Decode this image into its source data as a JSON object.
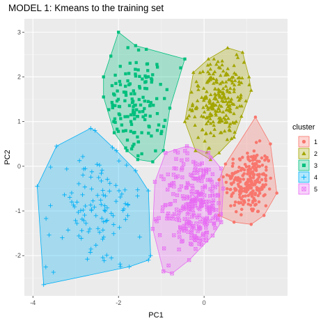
{
  "chart_data": {
    "type": "scatter",
    "title": "MODEL 1: Kmeans to the training set",
    "xlabel": "PC1",
    "ylabel": "PC2",
    "xlim": [
      -4.2,
      1.95
    ],
    "ylim": [
      -2.9,
      3.3
    ],
    "x_ticks": [
      -4,
      -2,
      0
    ],
    "y_ticks": [
      -2,
      -1,
      0,
      1,
      2,
      3
    ],
    "grid": true,
    "legend": {
      "title": "cluster",
      "position": "right"
    },
    "series": [
      {
        "name": "1",
        "color": "#F8766D",
        "shape": "circle",
        "hull": [
          [
            0.5,
            0.05
          ],
          [
            1.2,
            1.1
          ],
          [
            1.55,
            0.5
          ],
          [
            1.7,
            -0.6
          ],
          [
            1.4,
            -1.1
          ],
          [
            1.1,
            -1.3
          ],
          [
            0.7,
            -1.25
          ],
          [
            0.35,
            -1.1
          ],
          [
            0.35,
            -0.3
          ]
        ],
        "cluster": {
          "cx": 1.05,
          "cy": -0.35,
          "sx": 0.28,
          "sy": 0.38,
          "n": 230
        }
      },
      {
        "name": "2",
        "color": "#A3A500",
        "shape": "triangle",
        "hull": [
          [
            -0.45,
            1.0
          ],
          [
            -0.25,
            2.1
          ],
          [
            0.1,
            2.4
          ],
          [
            0.55,
            2.65
          ],
          [
            0.9,
            2.55
          ],
          [
            1.05,
            2.0
          ],
          [
            1.1,
            1.7
          ],
          [
            0.7,
            0.65
          ],
          [
            0.35,
            0.3
          ],
          [
            0.15,
            0.15
          ],
          [
            -0.2,
            0.35
          ]
        ],
        "cluster": {
          "cx": 0.35,
          "cy": 1.45,
          "sx": 0.3,
          "sy": 0.45,
          "n": 240
        }
      },
      {
        "name": "3",
        "color": "#00BF7D",
        "shape": "square",
        "hull": [
          [
            -2.35,
            2.0
          ],
          [
            -2.0,
            3.0
          ],
          [
            -1.6,
            2.7
          ],
          [
            -0.45,
            2.4
          ],
          [
            -0.8,
            1.3
          ],
          [
            -0.95,
            0.35
          ],
          [
            -1.2,
            0.1
          ],
          [
            -1.55,
            0.15
          ],
          [
            -1.8,
            0.35
          ],
          [
            -2.1,
            0.75
          ],
          [
            -2.35,
            1.55
          ]
        ],
        "cluster": {
          "cx": -1.6,
          "cy": 1.4,
          "sx": 0.35,
          "sy": 0.6,
          "n": 140
        }
      },
      {
        "name": "4",
        "color": "#00B0F6",
        "shape": "plus",
        "hull": [
          [
            -3.9,
            -0.45
          ],
          [
            -3.45,
            0.45
          ],
          [
            -2.65,
            0.85
          ],
          [
            -2.55,
            0.8
          ],
          [
            -2.05,
            0.35
          ],
          [
            -1.6,
            -0.1
          ],
          [
            -1.3,
            -0.55
          ],
          [
            -1.25,
            -2.0
          ],
          [
            -1.3,
            -2.1
          ],
          [
            -1.75,
            -2.25
          ],
          [
            -3.75,
            -2.65
          ]
        ],
        "cluster": {
          "cx": -2.55,
          "cy": -1.0,
          "sx": 0.55,
          "sy": 0.65,
          "n": 110
        }
      },
      {
        "name": "5",
        "color": "#E76BF3",
        "shape": "boxx",
        "hull": [
          [
            -1.15,
            -0.35
          ],
          [
            -0.9,
            0.3
          ],
          [
            -0.4,
            0.45
          ],
          [
            0.1,
            0.3
          ],
          [
            0.4,
            -0.05
          ],
          [
            0.45,
            -0.5
          ],
          [
            0.4,
            -1.25
          ],
          [
            0.2,
            -1.55
          ],
          [
            -0.35,
            -2.1
          ],
          [
            -0.75,
            -2.4
          ],
          [
            -0.95,
            -2.35
          ],
          [
            -1.2,
            -1.4
          ]
        ],
        "cluster": {
          "cx": -0.2,
          "cy": -0.9,
          "sx": 0.4,
          "sy": 0.6,
          "n": 260
        }
      }
    ]
  }
}
